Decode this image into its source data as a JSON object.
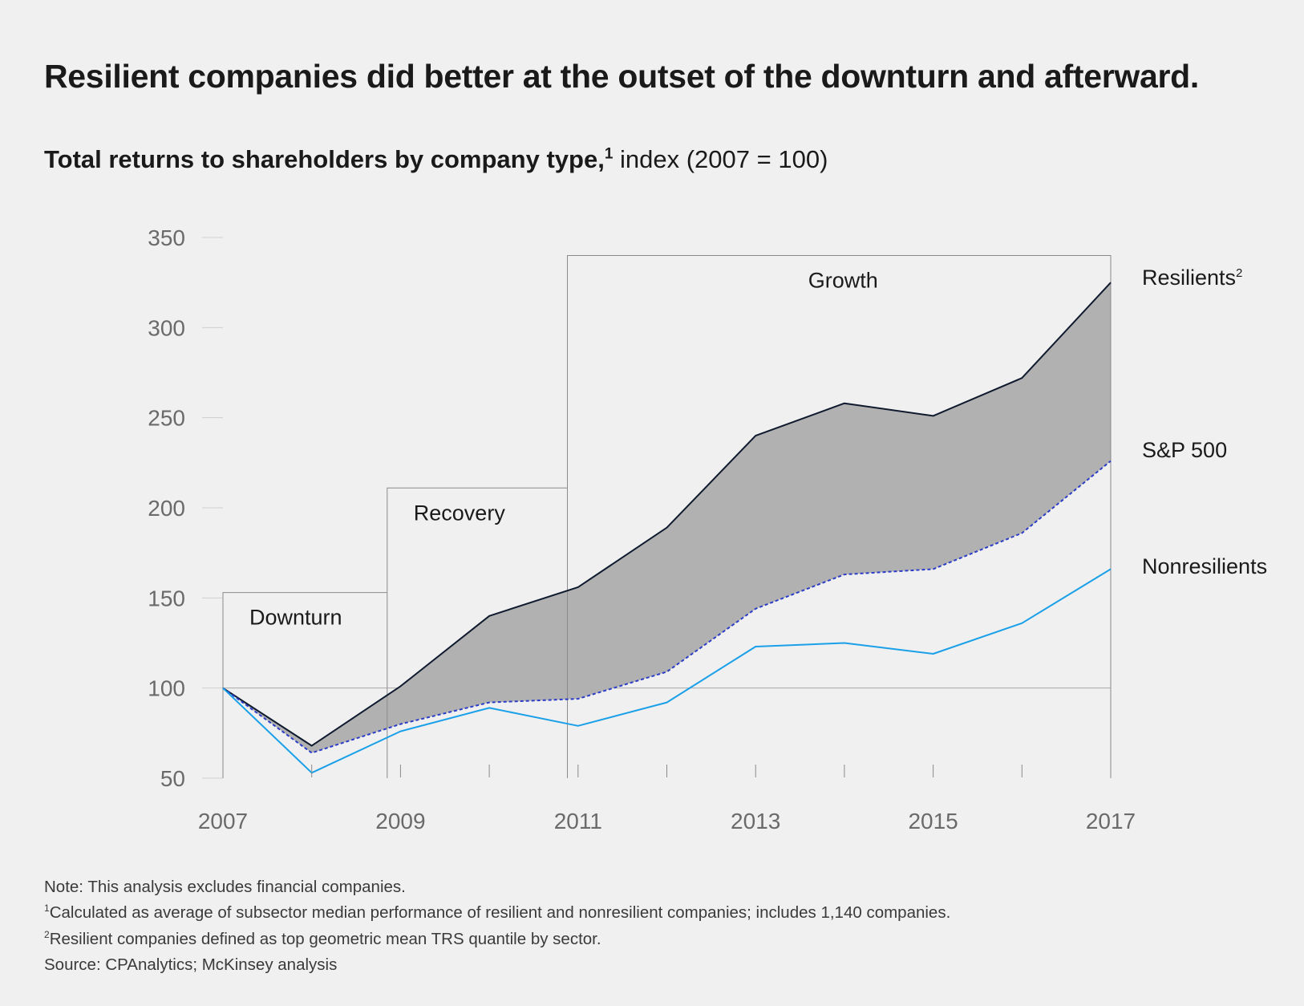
{
  "title": "Resilient companies did better at the outset of the downturn and afterward.",
  "subtitle": {
    "bold": "Total returns to shareholders by company type,",
    "sup": "1",
    "normal": " index (2007 = 100)"
  },
  "chart_data": {
    "type": "line",
    "x": [
      2007,
      2008,
      2009,
      2010,
      2011,
      2012,
      2013,
      2014,
      2015,
      2016,
      2017
    ],
    "x_tick_labels": [
      "2007",
      "2009",
      "2011",
      "2013",
      "2015",
      "2017"
    ],
    "y_ticks": [
      50,
      100,
      150,
      200,
      250,
      300,
      350
    ],
    "ylim": [
      50,
      350
    ],
    "series": [
      {
        "name": "Resilients",
        "sup": "2",
        "style": "solid",
        "color": "#0f1a2e",
        "values": [
          100,
          68,
          101,
          140,
          156,
          189,
          240,
          258,
          251,
          272,
          325
        ]
      },
      {
        "name": "S&P 500",
        "sup": "",
        "style": "dashed",
        "color": "#2b3cc7",
        "values": [
          100,
          64,
          80,
          92,
          94,
          109,
          144,
          163,
          166,
          186,
          226
        ]
      },
      {
        "name": "Nonresilients",
        "sup": "",
        "style": "solid",
        "color": "#1aa0e8",
        "values": [
          100,
          53,
          76,
          89,
          79,
          92,
          123,
          125,
          119,
          136,
          166
        ]
      }
    ],
    "shaded_band": {
      "between": [
        "Resilients",
        "S&P 500"
      ],
      "color": "#b1b1b1"
    },
    "phases": [
      {
        "label": "Downturn",
        "x_start": 2007,
        "x_end": 2008.85,
        "top": 153
      },
      {
        "label": "Recovery",
        "x_start": 2008.85,
        "x_end": 2010.88,
        "top": 211
      },
      {
        "label": "Growth",
        "x_start": 2010.88,
        "x_end": 2017,
        "top": 340
      }
    ],
    "reference_line": 100
  },
  "notes": [
    {
      "sup": "",
      "text": "Note: This analysis excludes financial companies."
    },
    {
      "sup": "1",
      "text": "Calculated as average of subsector median performance of resilient and nonresilient companies; includes 1,140 companies."
    },
    {
      "sup": "2",
      "text": "Resilient companies defined as top geometric mean TRS quantile by sector."
    },
    {
      "sup": "",
      "text": "Source: CPAnalytics; McKinsey analysis"
    }
  ]
}
